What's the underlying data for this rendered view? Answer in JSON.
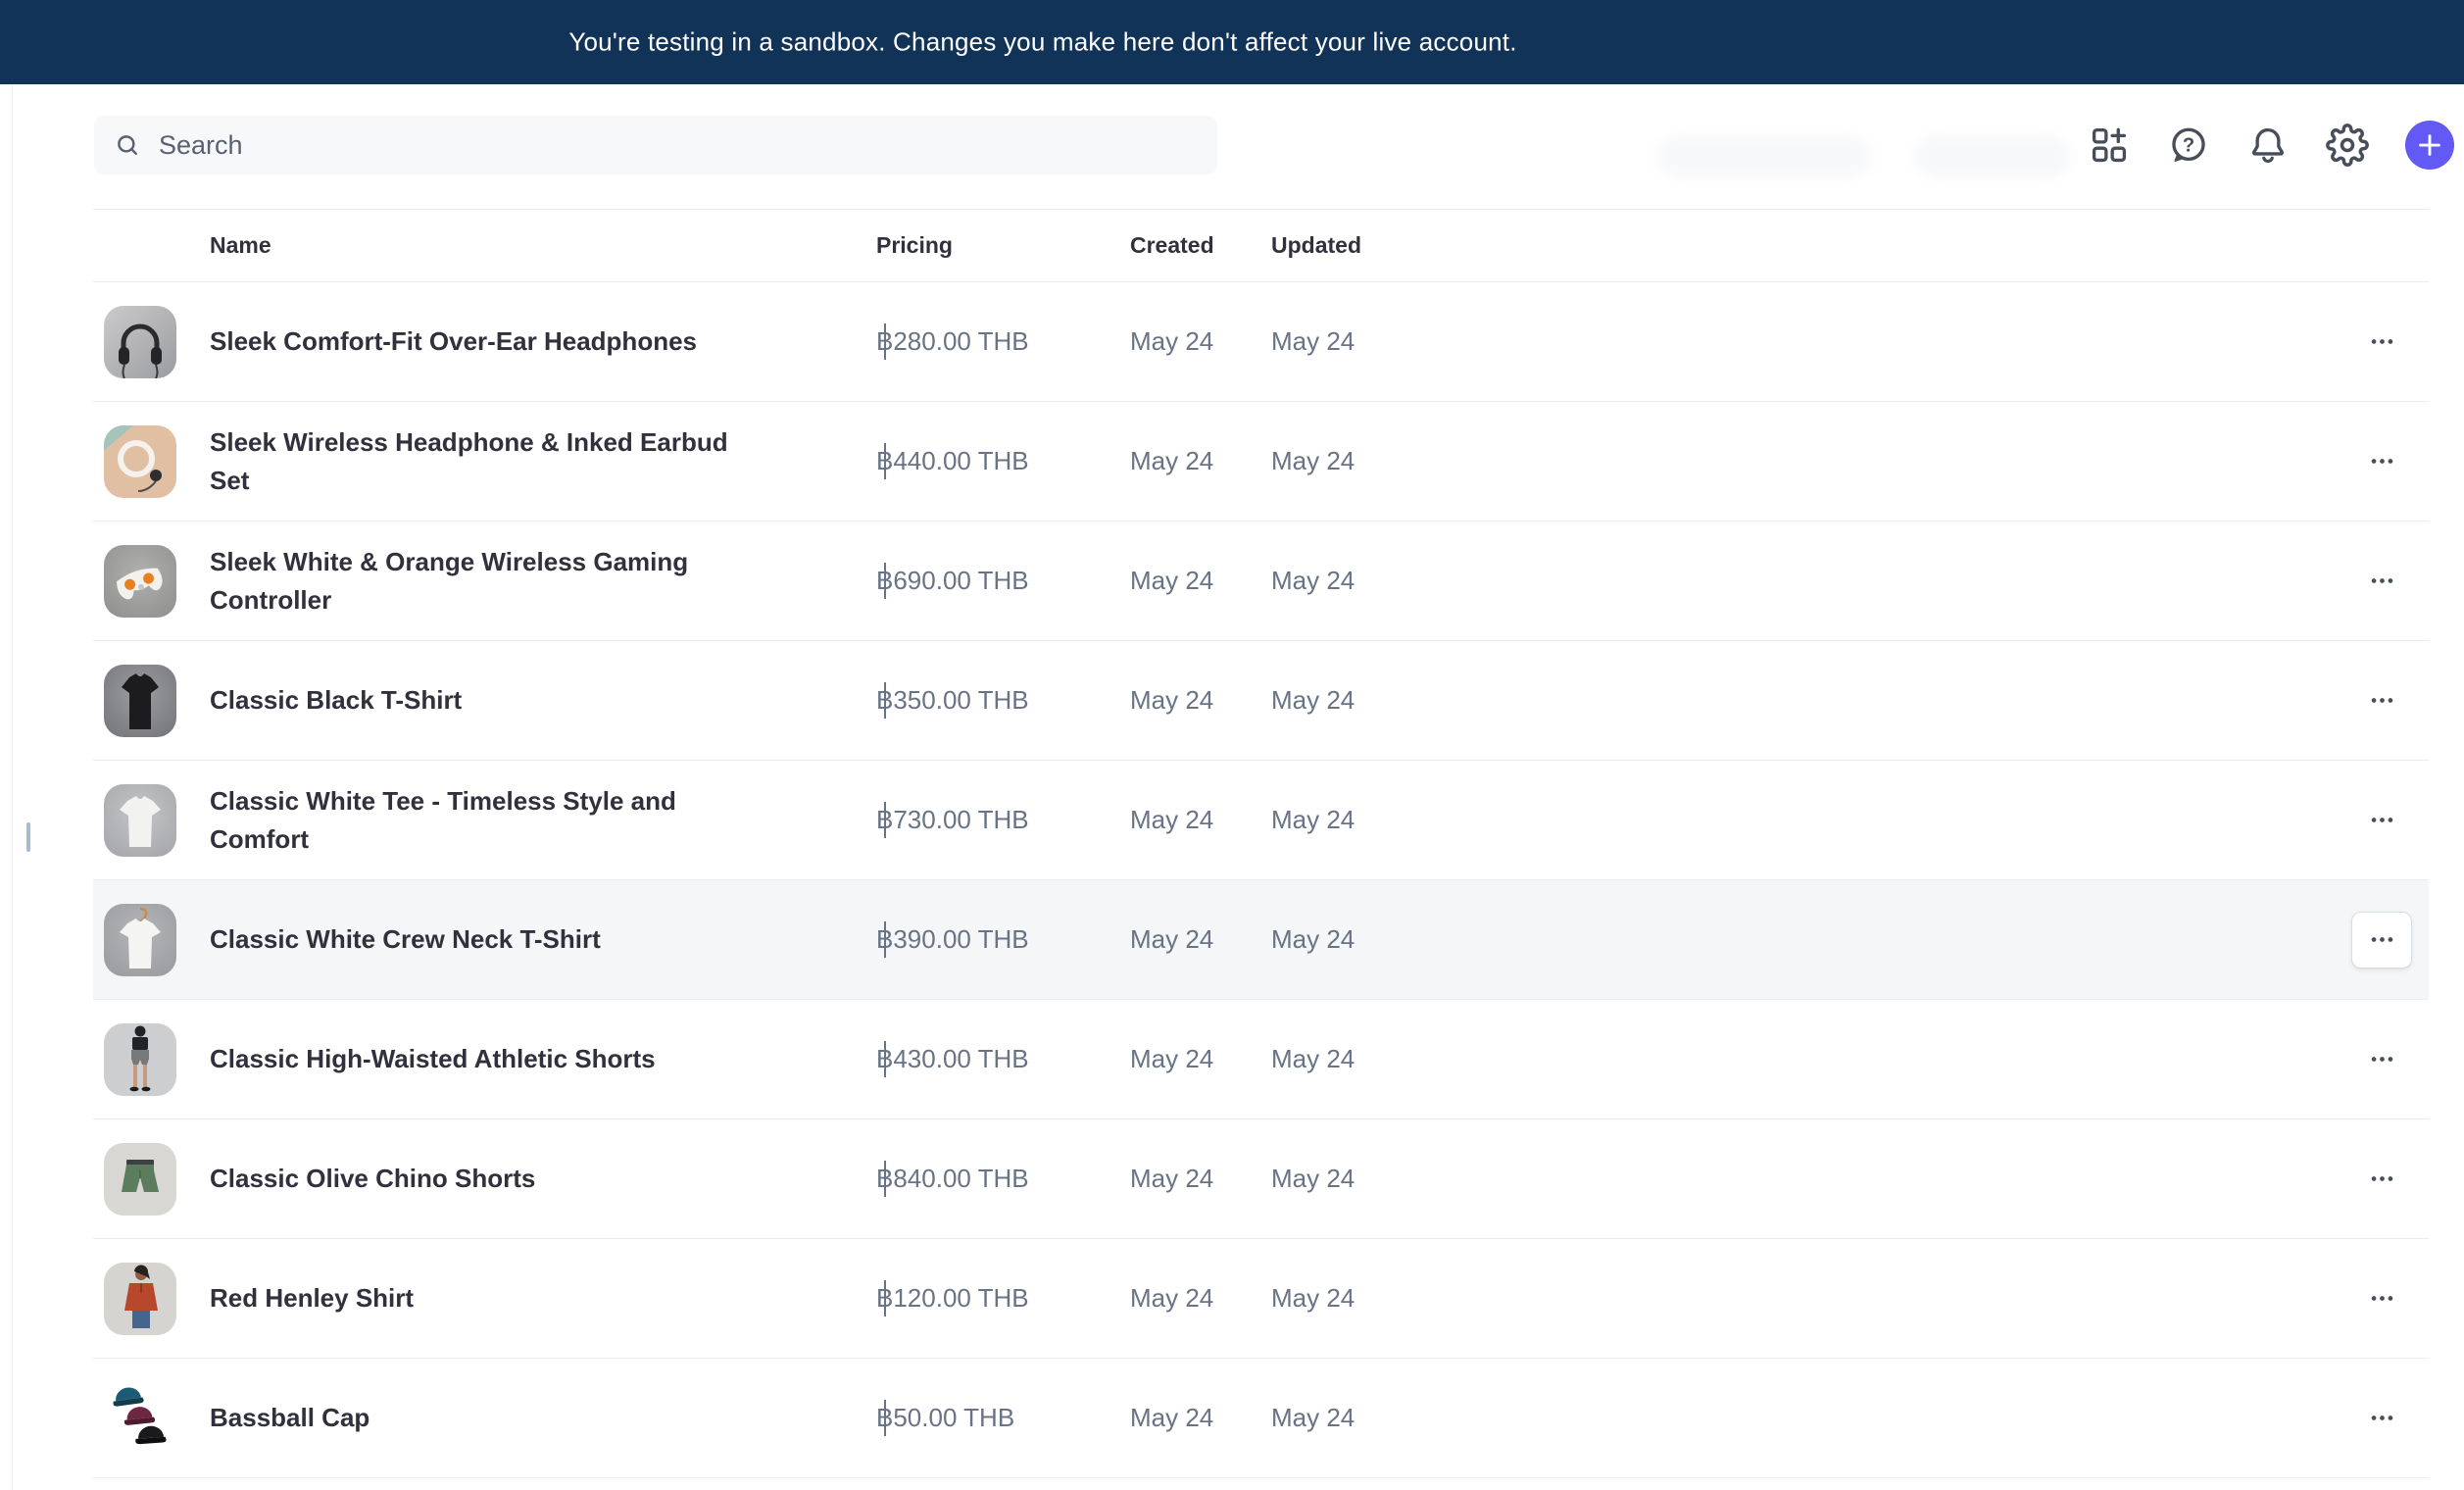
{
  "banner": {
    "text": "You're testing in a sandbox. Changes you make here don't affect your live account."
  },
  "topbar": {
    "search": {
      "placeholder": "Search",
      "icon": "search-icon"
    },
    "icons": [
      {
        "name": "apps-add-icon"
      },
      {
        "name": "help-icon"
      },
      {
        "name": "notifications-icon"
      },
      {
        "name": "settings-icon"
      }
    ],
    "create_button": {
      "icon": "plus-icon"
    }
  },
  "table": {
    "columns": [
      "Name",
      "Pricing",
      "Created",
      "Updated"
    ],
    "rows": [
      {
        "name": "Sleek Comfort-Fit Over-Ear Headphones",
        "pricing": "฿280.00 THB",
        "created": "May 24",
        "updated": "May 24",
        "thumb": "headphones-dark",
        "highlighted": false
      },
      {
        "name": "Sleek Wireless Headphone & Inked Earbud Set",
        "pricing": "฿440.00 THB",
        "created": "May 24",
        "updated": "May 24",
        "thumb": "headphones-peach",
        "highlighted": false
      },
      {
        "name": "Sleek White & Orange Wireless Gaming Controller",
        "pricing": "฿690.00 THB",
        "created": "May 24",
        "updated": "May 24",
        "thumb": "controller",
        "highlighted": false
      },
      {
        "name": "Classic Black T-Shirt",
        "pricing": "฿350.00 THB",
        "created": "May 24",
        "updated": "May 24",
        "thumb": "tshirt-black",
        "highlighted": false
      },
      {
        "name": "Classic White Tee - Timeless Style and Comfort",
        "pricing": "฿730.00 THB",
        "created": "May 24",
        "updated": "May 24",
        "thumb": "tshirt-white",
        "highlighted": false
      },
      {
        "name": "Classic White Crew Neck T-Shirt",
        "pricing": "฿390.00 THB",
        "created": "May 24",
        "updated": "May 24",
        "thumb": "tshirt-hanger",
        "highlighted": true
      },
      {
        "name": "Classic High-Waisted Athletic Shorts",
        "pricing": "฿430.00 THB",
        "created": "May 24",
        "updated": "May 24",
        "thumb": "model-shorts",
        "highlighted": false
      },
      {
        "name": "Classic Olive Chino Shorts",
        "pricing": "฿840.00 THB",
        "created": "May 24",
        "updated": "May 24",
        "thumb": "olive-shorts",
        "highlighted": false
      },
      {
        "name": "Red Henley Shirt",
        "pricing": "฿120.00 THB",
        "created": "May 24",
        "updated": "May 24",
        "thumb": "henley",
        "highlighted": false
      },
      {
        "name": "Bassball Cap",
        "pricing": "฿50.00 THB",
        "created": "May 24",
        "updated": "May 24",
        "thumb": "caps",
        "highlighted": false
      }
    ]
  },
  "colors": {
    "banner_bg": "#123358",
    "accent": "#635af6",
    "heading_text": "#30313d",
    "secondary_text": "#687385",
    "icon": "#474e5a",
    "border": "#ebeef1",
    "row_highlight": "#f4f6f8",
    "search_bg": "#f6f8fa"
  }
}
